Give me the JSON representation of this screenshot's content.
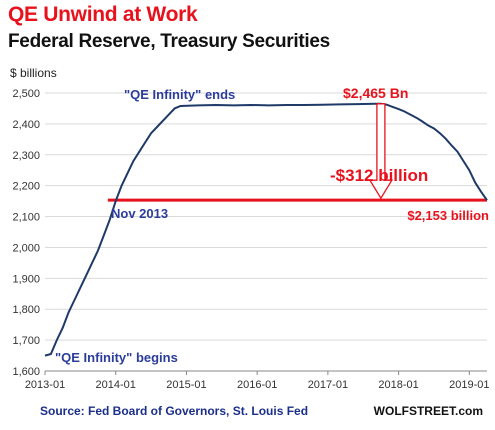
{
  "header": {
    "title": "QE Unwind at Work",
    "subtitle": "Federal Reserve, Treasury Securities",
    "y_unit": "$ billions"
  },
  "footer": {
    "source": "Source: Fed Board of Governors, St. Louis Fed",
    "site": "WOLFSTREET.com"
  },
  "colors": {
    "line": "#1f3a68",
    "accent": "#e8121d",
    "annotation": "#2b3c9b",
    "grid": "#d9d9d9"
  },
  "chart_data": {
    "type": "line",
    "title": "QE Unwind at Work",
    "subtitle": "Federal Reserve, Treasury Securities",
    "ylabel": "$ billions",
    "xlabel": "",
    "ylim": [
      1600,
      2500
    ],
    "xlim": [
      "2013-01",
      "2019-04"
    ],
    "grid": "horizontal",
    "yticks": [
      1600,
      1700,
      1800,
      1900,
      2000,
      2100,
      2200,
      2300,
      2400,
      2500
    ],
    "ytick_labels": [
      "1,600",
      "1,700",
      "1,800",
      "1,900",
      "2,000",
      "2,100",
      "2,200",
      "2,300",
      "2,400",
      "2,500"
    ],
    "xticks": [
      "2013-01",
      "2014-01",
      "2015-01",
      "2016-01",
      "2017-01",
      "2018-01",
      "2019-01"
    ],
    "series": [
      {
        "x": [
          "2013-01",
          "2013-02",
          "2013-03",
          "2013-04",
          "2013-05",
          "2013-06",
          "2013-07",
          "2013-08",
          "2013-09",
          "2013-10",
          "2013-11",
          "2013-12",
          "2014-01",
          "2014-02",
          "2014-03",
          "2014-04",
          "2014-05",
          "2014-06",
          "2014-07",
          "2014-08",
          "2014-09",
          "2014-10",
          "2014-11",
          "2014-12",
          "2015-03",
          "2015-06",
          "2015-09",
          "2015-12",
          "2016-03",
          "2016-06",
          "2016-09",
          "2016-12",
          "2017-03",
          "2017-06",
          "2017-09",
          "2017-10",
          "2017-11",
          "2017-12",
          "2018-01",
          "2018-02",
          "2018-03",
          "2018-04",
          "2018-05",
          "2018-06",
          "2018-07",
          "2018-08",
          "2018-09",
          "2018-10",
          "2018-11",
          "2018-12",
          "2019-01",
          "2019-02",
          "2019-03",
          "2019-04"
        ],
        "values": [
          1650,
          1655,
          1700,
          1740,
          1790,
          1830,
          1870,
          1910,
          1950,
          1990,
          2040,
          2090,
          2150,
          2200,
          2240,
          2280,
          2310,
          2340,
          2370,
          2390,
          2410,
          2430,
          2450,
          2458,
          2460,
          2461,
          2460,
          2461,
          2460,
          2461,
          2461,
          2462,
          2463,
          2464,
          2465,
          2465,
          2462,
          2455,
          2448,
          2440,
          2430,
          2420,
          2408,
          2395,
          2385,
          2370,
          2352,
          2330,
          2310,
          2280,
          2250,
          2210,
          2180,
          2153
        ]
      }
    ],
    "reference_line": {
      "value": 2153
    },
    "annotations": [
      {
        "text": "\"QE Infinity\" ends"
      },
      {
        "text": "\"QE Infinity\" begins"
      },
      {
        "text": "$2,465 Bn"
      },
      {
        "text": "-$312 billion"
      },
      {
        "text": "Nov 2013"
      },
      {
        "text": "$2,153 billion"
      }
    ]
  }
}
